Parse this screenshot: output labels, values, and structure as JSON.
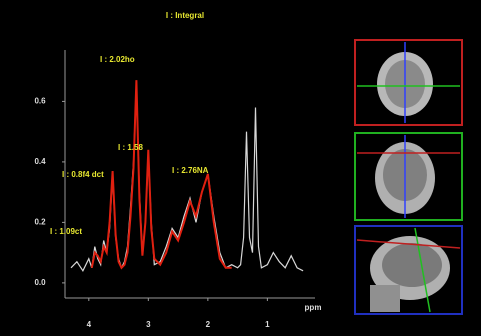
{
  "chart_data": {
    "type": "line",
    "title": "I : Integral",
    "x": [
      4.3,
      4.2,
      4.1,
      4.0,
      3.95,
      3.9,
      3.85,
      3.8,
      3.75,
      3.7,
      3.65,
      3.6,
      3.55,
      3.5,
      3.45,
      3.4,
      3.35,
      3.3,
      3.25,
      3.2,
      3.15,
      3.1,
      3.05,
      3.0,
      2.95,
      2.9,
      2.8,
      2.7,
      2.6,
      2.5,
      2.4,
      2.3,
      2.2,
      2.1,
      2.0,
      1.9,
      1.8,
      1.7,
      1.6,
      1.5,
      1.45,
      1.4,
      1.35,
      1.3,
      1.25,
      1.2,
      1.15,
      1.1,
      1.0,
      0.9,
      0.8,
      0.7,
      0.6,
      0.5,
      0.4
    ],
    "series": [
      {
        "color": "#d8d8d8",
        "values": [
          0.05,
          0.07,
          0.04,
          0.08,
          0.05,
          0.12,
          0.08,
          0.06,
          0.14,
          0.1,
          0.18,
          0.36,
          0.15,
          0.08,
          0.05,
          0.07,
          0.12,
          0.25,
          0.4,
          0.66,
          0.3,
          0.1,
          0.2,
          0.43,
          0.2,
          0.06,
          0.07,
          0.12,
          0.18,
          0.15,
          0.22,
          0.28,
          0.2,
          0.3,
          0.36,
          0.22,
          0.1,
          0.05,
          0.06,
          0.05,
          0.06,
          0.15,
          0.5,
          0.15,
          0.1,
          0.58,
          0.12,
          0.05,
          0.06,
          0.1,
          0.07,
          0.05,
          0.09,
          0.05,
          0.04
        ]
      },
      {
        "color": "#e02010",
        "values": [
          null,
          null,
          null,
          null,
          0.05,
          0.1,
          0.09,
          0.07,
          0.12,
          0.1,
          0.2,
          0.37,
          0.16,
          0.07,
          0.05,
          0.06,
          0.1,
          0.22,
          0.38,
          0.67,
          0.28,
          0.09,
          0.2,
          0.44,
          0.18,
          0.08,
          0.06,
          0.1,
          0.17,
          0.14,
          0.2,
          0.27,
          0.22,
          0.3,
          0.36,
          0.2,
          0.08,
          0.05,
          0.05,
          null,
          null,
          null,
          null,
          null,
          null,
          null,
          null,
          null,
          null,
          null,
          null,
          null,
          null,
          null,
          null
        ]
      }
    ],
    "annotations": [
      "I : 2.02ho",
      "I : 1.58",
      "I : 0.8f4 dct",
      "I : 2.76NA",
      "I : 1.09ct"
    ],
    "xlabel": "ppm",
    "xlim": [
      4.4,
      0.2
    ],
    "xticks": [
      4,
      3,
      2,
      1
    ],
    "ylim": [
      -0.05,
      0.77
    ],
    "yticks": [
      {
        "value": 0,
        "label": "0.0"
      },
      0.2,
      0.4,
      0.6
    ]
  }
}
